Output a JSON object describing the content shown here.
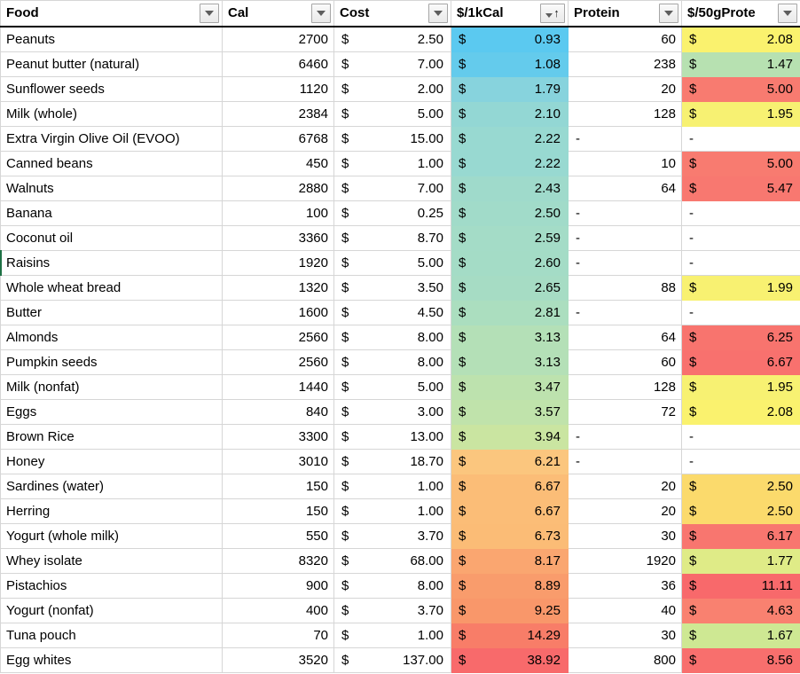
{
  "currency_symbol": "$",
  "header": {
    "columns": [
      {
        "label": "Food"
      },
      {
        "label": "Cal"
      },
      {
        "label": "Cost"
      },
      {
        "label": "$/1kCal",
        "sort_indicator": "asc"
      },
      {
        "label": "Protein"
      },
      {
        "label": "$/50gProte"
      }
    ],
    "sort_arrow_glyph": "↑"
  },
  "selection": {
    "row_label": "Raisins"
  },
  "rows": [
    {
      "food": "Peanuts",
      "cal": "2700",
      "cost": "2.50",
      "per_kcal": "0.93",
      "per_kcal_color": "#5bc9f0",
      "protein": "60",
      "per_50g": "2.08",
      "per_50g_color": "#faf26e"
    },
    {
      "food": "Peanut butter (natural)",
      "cal": "6460",
      "cost": "7.00",
      "per_kcal": "1.08",
      "per_kcal_color": "#64cbec",
      "protein": "238",
      "per_50g": "1.47",
      "per_50g_color": "#b7e1b1"
    },
    {
      "food": "Sunflower seeds",
      "cal": "1120",
      "cost": "2.00",
      "per_kcal": "1.79",
      "per_kcal_color": "#87d3dd",
      "protein": "20",
      "per_50g": "5.00",
      "per_50g_color": "#f87b70"
    },
    {
      "food": "Milk (whole)",
      "cal": "2384",
      "cost": "5.00",
      "per_kcal": "2.10",
      "per_kcal_color": "#93d7d4",
      "protein": "128",
      "per_50g": "1.95",
      "per_50g_color": "#f7f172"
    },
    {
      "food": "Extra Virgin Olive Oil (EVOO)",
      "cal": "6768",
      "cost": "15.00",
      "per_kcal": "2.22",
      "per_kcal_color": "#98d9d1",
      "protein": "-",
      "per_50g": "-",
      "per_50g_color": ""
    },
    {
      "food": "Canned beans",
      "cal": "450",
      "cost": "1.00",
      "per_kcal": "2.22",
      "per_kcal_color": "#98d9d1",
      "protein": "10",
      "per_50g": "5.00",
      "per_50g_color": "#f87b70"
    },
    {
      "food": "Walnuts",
      "cal": "2880",
      "cost": "7.00",
      "per_kcal": "2.43",
      "per_kcal_color": "#9fdacb",
      "protein": "64",
      "per_50g": "5.47",
      "per_50g_color": "#f87870"
    },
    {
      "food": "Banana",
      "cal": "100",
      "cost": "0.25",
      "per_kcal": "2.50",
      "per_kcal_color": "#a1dbc9",
      "protein": "-",
      "per_50g": "-",
      "per_50g_color": ""
    },
    {
      "food": "Coconut oil",
      "cal": "3360",
      "cost": "8.70",
      "per_kcal": "2.59",
      "per_kcal_color": "#a4dcc7",
      "protein": "-",
      "per_50g": "-",
      "per_50g_color": ""
    },
    {
      "food": "Raisins",
      "cal": "1920",
      "cost": "5.00",
      "per_kcal": "2.60",
      "per_kcal_color": "#a4dcc6",
      "protein": "-",
      "per_50g": "-",
      "per_50g_color": ""
    },
    {
      "food": "Whole wheat bread",
      "cal": "1320",
      "cost": "3.50",
      "per_kcal": "2.65",
      "per_kcal_color": "#a6dcc4",
      "protein": "88",
      "per_50g": "1.99",
      "per_50g_color": "#f8f171"
    },
    {
      "food": "Butter",
      "cal": "1600",
      "cost": "4.50",
      "per_kcal": "2.81",
      "per_kcal_color": "#abdebf",
      "protein": "-",
      "per_50g": "-",
      "per_50g_color": ""
    },
    {
      "food": "Almonds",
      "cal": "2560",
      "cost": "8.00",
      "per_kcal": "3.13",
      "per_kcal_color": "#b4e0b7",
      "protein": "64",
      "per_50g": "6.25",
      "per_50g_color": "#f8746e"
    },
    {
      "food": "Pumpkin seeds",
      "cal": "2560",
      "cost": "8.00",
      "per_kcal": "3.13",
      "per_kcal_color": "#b4e0b7",
      "protein": "60",
      "per_50g": "6.67",
      "per_50g_color": "#f8716e"
    },
    {
      "food": "Milk (nonfat)",
      "cal": "1440",
      "cost": "5.00",
      "per_kcal": "3.47",
      "per_kcal_color": "#bde2ae",
      "protein": "128",
      "per_50g": "1.95",
      "per_50g_color": "#f7f172"
    },
    {
      "food": "Eggs",
      "cal": "840",
      "cost": "3.00",
      "per_kcal": "3.57",
      "per_kcal_color": "#c0e3ab",
      "protein": "72",
      "per_50g": "2.08",
      "per_50g_color": "#faf26e"
    },
    {
      "food": "Brown Rice",
      "cal": "3300",
      "cost": "13.00",
      "per_kcal": "3.94",
      "per_kcal_color": "#cae5a1",
      "protein": "-",
      "per_50g": "-",
      "per_50g_color": ""
    },
    {
      "food": "Honey",
      "cal": "3010",
      "cost": "18.70",
      "per_kcal": "6.21",
      "per_kcal_color": "#fbc67e",
      "protein": "-",
      "per_50g": "-",
      "per_50g_color": ""
    },
    {
      "food": "Sardines (water)",
      "cal": "150",
      "cost": "1.00",
      "per_kcal": "6.67",
      "per_kcal_color": "#fbbd77",
      "protein": "20",
      "per_50g": "2.50",
      "per_50g_color": "#fbda6c"
    },
    {
      "food": "Herring",
      "cal": "150",
      "cost": "1.00",
      "per_kcal": "6.67",
      "per_kcal_color": "#fbbd77",
      "protein": "20",
      "per_50g": "2.50",
      "per_50g_color": "#fbda6c"
    },
    {
      "food": "Yogurt (whole milk)",
      "cal": "550",
      "cost": "3.70",
      "per_kcal": "6.73",
      "per_kcal_color": "#fbbc76",
      "protein": "30",
      "per_50g": "6.17",
      "per_50g_color": "#f8766f"
    },
    {
      "food": "Whey isolate",
      "cal": "8320",
      "cost": "68.00",
      "per_kcal": "8.17",
      "per_kcal_color": "#faa670",
      "protein": "1920",
      "per_50g": "1.77",
      "per_50g_color": "#dfeb87"
    },
    {
      "food": "Pistachios",
      "cal": "900",
      "cost": "8.00",
      "per_kcal": "8.89",
      "per_kcal_color": "#f99c6c",
      "protein": "36",
      "per_50g": "11.11",
      "per_50g_color": "#f8696b"
    },
    {
      "food": "Yogurt (nonfat)",
      "cal": "400",
      "cost": "3.70",
      "per_kcal": "9.25",
      "per_kcal_color": "#f9976a",
      "protein": "40",
      "per_50g": "4.63",
      "per_50g_color": "#f98170"
    },
    {
      "food": "Tuna pouch",
      "cal": "70",
      "cost": "1.00",
      "per_kcal": "14.29",
      "per_kcal_color": "#f87d68",
      "protein": "30",
      "per_50g": "1.67",
      "per_50g_color": "#cee893"
    },
    {
      "food": "Egg whites",
      "cal": "3520",
      "cost": "137.00",
      "per_kcal": "38.92",
      "per_kcal_color": "#f86a6b",
      "protein": "800",
      "per_50g": "8.56",
      "per_50g_color": "#f86f6d"
    }
  ]
}
